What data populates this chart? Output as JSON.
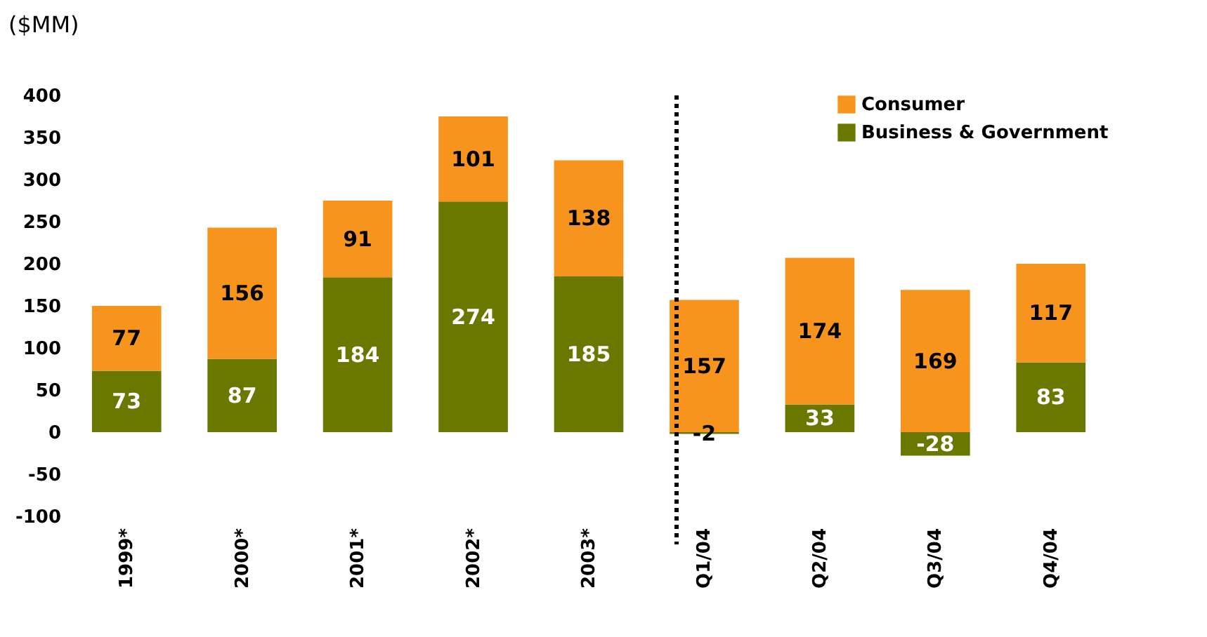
{
  "chart_data": {
    "type": "bar",
    "stacked": true,
    "ylabel": "($MM)",
    "categories": [
      "1999*",
      "2000*",
      "2001*",
      "2002*",
      "2003*",
      "Q1/04",
      "Q2/04",
      "Q3/04",
      "Q4/04"
    ],
    "series": [
      {
        "name": "Business & Government",
        "color": "#6b7800",
        "values": [
          73,
          87,
          184,
          274,
          185,
          -2,
          33,
          -28,
          83
        ]
      },
      {
        "name": "Consumer",
        "color": "#f7941d",
        "values": [
          77,
          156,
          91,
          101,
          138,
          157,
          174,
          169,
          117
        ]
      }
    ],
    "ylim": [
      -100,
      400
    ],
    "yticks": [
      -100,
      -50,
      0,
      50,
      100,
      150,
      200,
      250,
      300,
      350,
      400
    ],
    "ref_lines": [
      {
        "axis": "x",
        "value": "Q1/04",
        "line_style": "dotted",
        "color": "#000000"
      }
    ],
    "data_labels": true,
    "legend": "top right",
    "grid": false
  }
}
